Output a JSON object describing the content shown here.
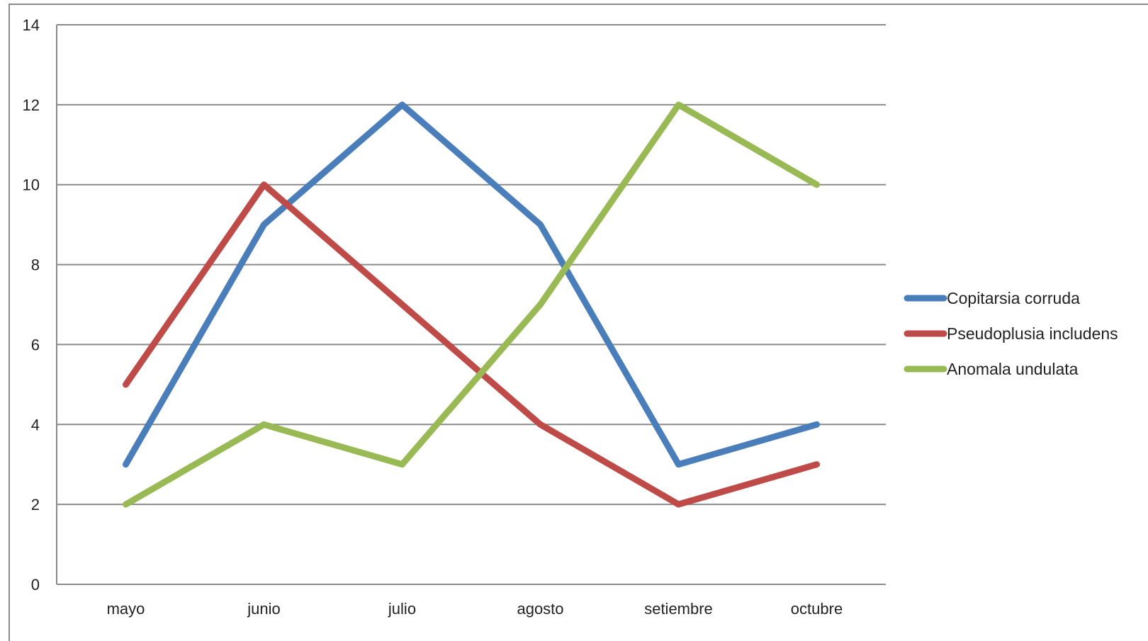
{
  "chart_data": {
    "type": "line",
    "categories": [
      "mayo",
      "junio",
      "julio",
      "agosto",
      "setiembre",
      "octubre"
    ],
    "series": [
      {
        "name": "Copitarsia corruda",
        "color": "#4a7ebb",
        "values": [
          3,
          9,
          12,
          9,
          3,
          4
        ]
      },
      {
        "name": "Pseudoplusia includens",
        "color": "#be4b48",
        "values": [
          5,
          10,
          7,
          4,
          2,
          3
        ]
      },
      {
        "name": "Anomala undulata",
        "color": "#98b954",
        "values": [
          2,
          4,
          3,
          7,
          12,
          10
        ]
      }
    ],
    "ylim": [
      0,
      14
    ],
    "yticks": [
      0,
      2,
      4,
      6,
      8,
      10,
      12,
      14
    ],
    "grid": true,
    "legend": "right"
  }
}
